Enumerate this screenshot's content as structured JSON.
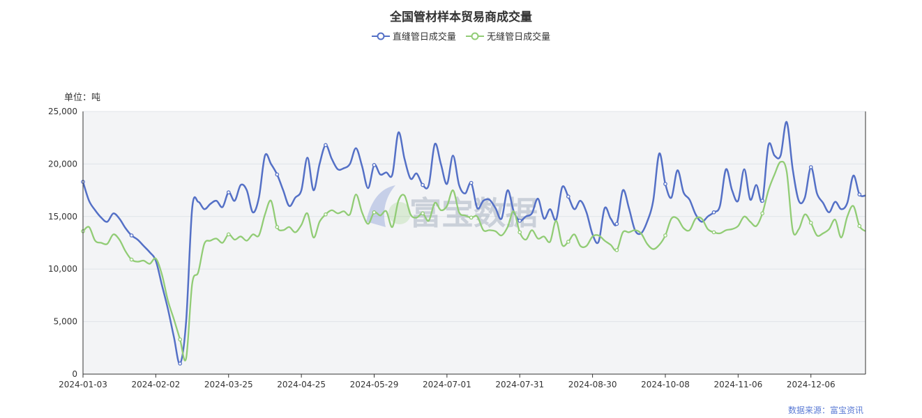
{
  "chart_data": {
    "type": "line",
    "title": "全国管材样本贸易商成交量",
    "unit_label": "单位：吨",
    "source_label": "数据来源：富宝资讯",
    "watermark_text": "富宝数据",
    "ylim": [
      0,
      25000
    ],
    "y_ticks": [
      0,
      5000,
      10000,
      15000,
      20000,
      25000
    ],
    "y_tick_labels": [
      "0",
      "5,000",
      "10,000",
      "15,000",
      "20,000",
      "25,000"
    ],
    "x_tick_labels": [
      "2024-01-03",
      "2024-02-02",
      "2024-03-25",
      "2024-04-25",
      "2024-05-29",
      "2024-07-01",
      "2024-07-31",
      "2024-08-30",
      "2024-10-08",
      "2024-11-06",
      "2024-12-06"
    ],
    "x_tick_positions": [
      0,
      12,
      24,
      36,
      48,
      60,
      72,
      84,
      96,
      108,
      120
    ],
    "x_count": 130,
    "series": [
      {
        "name": "直缝管日成交量",
        "color": "#5470c6",
        "values": [
          [
            0,
            18300
          ],
          [
            1,
            16500
          ],
          [
            2,
            15600
          ],
          [
            3,
            14900
          ],
          [
            4,
            14500
          ],
          [
            5,
            15300
          ],
          [
            6,
            14800
          ],
          [
            7,
            13900
          ],
          [
            8,
            13200
          ],
          [
            9,
            12800
          ],
          [
            10,
            12200
          ],
          [
            11,
            11600
          ],
          [
            12,
            10800
          ],
          [
            13,
            8500
          ],
          [
            14,
            6200
          ],
          [
            15,
            3500
          ],
          [
            16,
            1000
          ],
          [
            17,
            5000
          ],
          [
            18,
            15800
          ],
          [
            19,
            16400
          ],
          [
            20,
            15700
          ],
          [
            21,
            16200
          ],
          [
            22,
            16500
          ],
          [
            23,
            15900
          ],
          [
            24,
            17300
          ],
          [
            25,
            16500
          ],
          [
            26,
            18000
          ],
          [
            27,
            17500
          ],
          [
            28,
            15400
          ],
          [
            29,
            16800
          ],
          [
            30,
            20800
          ],
          [
            31,
            20000
          ],
          [
            32,
            19000
          ],
          [
            33,
            17500
          ],
          [
            34,
            16000
          ],
          [
            35,
            16800
          ],
          [
            36,
            17500
          ],
          [
            37,
            20600
          ],
          [
            38,
            17500
          ],
          [
            39,
            20000
          ],
          [
            40,
            21800
          ],
          [
            41,
            20500
          ],
          [
            42,
            19500
          ],
          [
            43,
            19600
          ],
          [
            44,
            20000
          ],
          [
            45,
            21500
          ],
          [
            46,
            19800
          ],
          [
            47,
            17700
          ],
          [
            48,
            19900
          ],
          [
            49,
            19000
          ],
          [
            50,
            19200
          ],
          [
            51,
            19000
          ],
          [
            52,
            23000
          ],
          [
            53,
            20500
          ],
          [
            54,
            18600
          ],
          [
            55,
            19100
          ],
          [
            56,
            18000
          ],
          [
            57,
            18000
          ],
          [
            58,
            21900
          ],
          [
            59,
            20000
          ],
          [
            60,
            18100
          ],
          [
            61,
            20800
          ],
          [
            62,
            18000
          ],
          [
            63,
            17200
          ],
          [
            64,
            18200
          ],
          [
            65,
            15800
          ],
          [
            66,
            16500
          ],
          [
            67,
            16600
          ],
          [
            68,
            15800
          ],
          [
            69,
            14800
          ],
          [
            70,
            17500
          ],
          [
            71,
            15500
          ],
          [
            72,
            14600
          ],
          [
            73,
            15000
          ],
          [
            74,
            15300
          ],
          [
            75,
            16700
          ],
          [
            76,
            14800
          ],
          [
            77,
            15700
          ],
          [
            78,
            14700
          ],
          [
            79,
            17800
          ],
          [
            80,
            16900
          ],
          [
            81,
            15700
          ],
          [
            82,
            16500
          ],
          [
            83,
            15400
          ],
          [
            84,
            13300
          ],
          [
            85,
            12600
          ],
          [
            86,
            15800
          ],
          [
            87,
            14800
          ],
          [
            88,
            14300
          ],
          [
            89,
            17500
          ],
          [
            90,
            15800
          ],
          [
            91,
            13700
          ],
          [
            92,
            13400
          ],
          [
            93,
            14500
          ],
          [
            94,
            16500
          ],
          [
            95,
            21000
          ],
          [
            96,
            18100
          ],
          [
            97,
            16800
          ],
          [
            98,
            19400
          ],
          [
            99,
            17300
          ],
          [
            100,
            16600
          ],
          [
            101,
            15200
          ],
          [
            102,
            14500
          ],
          [
            103,
            15000
          ],
          [
            104,
            15400
          ],
          [
            105,
            16000
          ],
          [
            106,
            19500
          ],
          [
            107,
            17500
          ],
          [
            108,
            16500
          ],
          [
            109,
            19500
          ],
          [
            110,
            16600
          ],
          [
            111,
            18000
          ],
          [
            112,
            16500
          ],
          [
            113,
            21800
          ],
          [
            114,
            20800
          ],
          [
            115,
            20800
          ],
          [
            116,
            24000
          ],
          [
            117,
            19500
          ],
          [
            118,
            16500
          ],
          [
            119,
            16800
          ],
          [
            120,
            19700
          ],
          [
            121,
            17200
          ],
          [
            122,
            16300
          ],
          [
            123,
            15400
          ],
          [
            124,
            16400
          ],
          [
            125,
            15700
          ],
          [
            126,
            16300
          ],
          [
            127,
            18900
          ],
          [
            128,
            17100
          ],
          [
            129,
            17000
          ]
        ]
      },
      {
        "name": "无缝管日成交量",
        "color": "#91cc75",
        "values": [
          [
            0,
            13600
          ],
          [
            1,
            14000
          ],
          [
            2,
            12700
          ],
          [
            3,
            12500
          ],
          [
            4,
            12400
          ],
          [
            5,
            13300
          ],
          [
            6,
            12800
          ],
          [
            7,
            11700
          ],
          [
            8,
            10900
          ],
          [
            9,
            10700
          ],
          [
            10,
            10800
          ],
          [
            11,
            10500
          ],
          [
            12,
            11000
          ],
          [
            13,
            9500
          ],
          [
            14,
            7000
          ],
          [
            15,
            5200
          ],
          [
            16,
            3300
          ],
          [
            17,
            1500
          ],
          [
            18,
            8600
          ],
          [
            19,
            9700
          ],
          [
            20,
            12400
          ],
          [
            21,
            12700
          ],
          [
            22,
            12900
          ],
          [
            23,
            12500
          ],
          [
            24,
            13300
          ],
          [
            25,
            12800
          ],
          [
            26,
            13100
          ],
          [
            27,
            12700
          ],
          [
            28,
            13300
          ],
          [
            29,
            13200
          ],
          [
            30,
            15200
          ],
          [
            31,
            16500
          ],
          [
            32,
            14000
          ],
          [
            33,
            13700
          ],
          [
            34,
            14000
          ],
          [
            35,
            13500
          ],
          [
            36,
            14200
          ],
          [
            37,
            15300
          ],
          [
            38,
            13000
          ],
          [
            39,
            14500
          ],
          [
            40,
            15200
          ],
          [
            41,
            15600
          ],
          [
            42,
            15300
          ],
          [
            43,
            15500
          ],
          [
            44,
            15200
          ],
          [
            45,
            17100
          ],
          [
            46,
            15400
          ],
          [
            47,
            14300
          ],
          [
            48,
            15400
          ],
          [
            49,
            15100
          ],
          [
            50,
            15500
          ],
          [
            51,
            14000
          ],
          [
            52,
            16500
          ],
          [
            53,
            17000
          ],
          [
            54,
            15200
          ],
          [
            55,
            14900
          ],
          [
            56,
            15300
          ],
          [
            57,
            14600
          ],
          [
            58,
            16300
          ],
          [
            59,
            15600
          ],
          [
            60,
            16000
          ],
          [
            61,
            17500
          ],
          [
            62,
            15400
          ],
          [
            63,
            15100
          ],
          [
            64,
            14900
          ],
          [
            65,
            15000
          ],
          [
            66,
            13700
          ],
          [
            67,
            13700
          ],
          [
            68,
            13600
          ],
          [
            69,
            13200
          ],
          [
            70,
            14000
          ],
          [
            71,
            15500
          ],
          [
            72,
            13500
          ],
          [
            73,
            12800
          ],
          [
            74,
            13700
          ],
          [
            75,
            12900
          ],
          [
            76,
            13100
          ],
          [
            77,
            12600
          ],
          [
            78,
            14600
          ],
          [
            79,
            12300
          ],
          [
            80,
            12600
          ],
          [
            81,
            13300
          ],
          [
            82,
            12200
          ],
          [
            83,
            12200
          ],
          [
            84,
            13100
          ],
          [
            85,
            13200
          ],
          [
            86,
            12700
          ],
          [
            87,
            12300
          ],
          [
            88,
            11800
          ],
          [
            89,
            13500
          ],
          [
            90,
            13500
          ],
          [
            91,
            13700
          ],
          [
            92,
            13400
          ],
          [
            93,
            12400
          ],
          [
            94,
            11900
          ],
          [
            95,
            12300
          ],
          [
            96,
            13200
          ],
          [
            97,
            14800
          ],
          [
            98,
            14800
          ],
          [
            99,
            13900
          ],
          [
            100,
            13700
          ],
          [
            101,
            14800
          ],
          [
            102,
            14800
          ],
          [
            103,
            13800
          ],
          [
            104,
            13500
          ],
          [
            105,
            13400
          ],
          [
            106,
            13700
          ],
          [
            107,
            13800
          ],
          [
            108,
            14100
          ],
          [
            109,
            15000
          ],
          [
            110,
            14500
          ],
          [
            111,
            14100
          ],
          [
            112,
            15300
          ],
          [
            113,
            17500
          ],
          [
            114,
            19000
          ],
          [
            115,
            20200
          ],
          [
            116,
            19300
          ],
          [
            117,
            13700
          ],
          [
            118,
            13800
          ],
          [
            119,
            15200
          ],
          [
            120,
            14400
          ],
          [
            121,
            13200
          ],
          [
            122,
            13400
          ],
          [
            123,
            13800
          ],
          [
            124,
            14700
          ],
          [
            125,
            13000
          ],
          [
            126,
            15000
          ],
          [
            127,
            16000
          ],
          [
            128,
            14100
          ],
          [
            129,
            13600
          ]
        ]
      }
    ]
  }
}
